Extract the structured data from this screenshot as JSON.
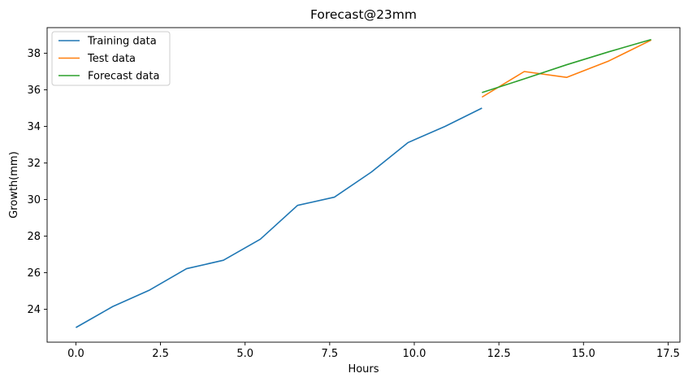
{
  "chart_data": {
    "type": "line",
    "title": "Forecast@23mm",
    "xlabel": "Hours",
    "ylabel": "Growth(mm)",
    "xlim": [
      -0.85,
      17.85
    ],
    "ylim": [
      22.2,
      39.4
    ],
    "xticks": [
      0.0,
      2.5,
      5.0,
      7.5,
      10.0,
      12.5,
      15.0,
      17.5
    ],
    "xtick_labels": [
      "0.0",
      "2.5",
      "5.0",
      "7.5",
      "10.0",
      "12.5",
      "15.0",
      "17.5"
    ],
    "yticks": [
      24,
      26,
      28,
      30,
      32,
      34,
      36,
      38
    ],
    "ytick_labels": [
      "24",
      "26",
      "28",
      "30",
      "32",
      "34",
      "36",
      "38"
    ],
    "grid": false,
    "legend_position": "top-left",
    "series": [
      {
        "name": "Training data",
        "color": "#1f77b4",
        "x": [
          0.0,
          1.09,
          2.18,
          3.27,
          4.36,
          5.45,
          6.55,
          7.64,
          8.73,
          9.82,
          10.91,
          12.0
        ],
        "y": [
          23.0,
          24.15,
          25.05,
          26.22,
          26.68,
          27.83,
          29.68,
          30.13,
          31.5,
          33.12,
          34.0,
          35.0
        ]
      },
      {
        "name": "Test data",
        "color": "#ff7f0e",
        "x": [
          12.0,
          13.25,
          14.5,
          15.75,
          17.0
        ],
        "y": [
          35.6,
          37.0,
          36.68,
          37.58,
          38.72
        ]
      },
      {
        "name": "Forecast data",
        "color": "#2ca02c",
        "x": [
          12.0,
          13.25,
          14.5,
          15.75,
          17.0
        ],
        "y": [
          35.85,
          36.6,
          37.37,
          38.08,
          38.75
        ]
      }
    ]
  }
}
